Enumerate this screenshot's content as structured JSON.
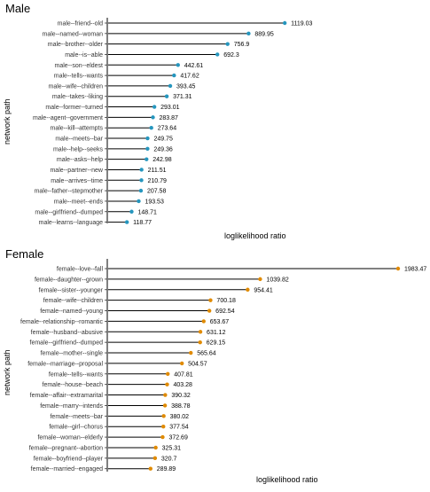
{
  "chart_data": [
    {
      "type": "lollipop",
      "title": "Male",
      "xlabel": "loglikelihood ratio",
      "ylabel": "network path",
      "color": "#2596be",
      "categories": [
        "male--friend--old",
        "male--named--woman",
        "male--brother--older",
        "male--is--able",
        "male--son--eldest",
        "male--tells--wants",
        "male--wife--children",
        "male--takes--liking",
        "male--former--turned",
        "male--agent--government",
        "male--kill--attempts",
        "male--meets--bar",
        "male--help--seeks",
        "male--asks--help",
        "male--partner--new",
        "male--arrives--time",
        "male--father--stepmother",
        "male--meet--ends",
        "male--girlfriend--dumped",
        "male--learns--language"
      ],
      "values": [
        1119.03,
        889.95,
        756.9,
        692.3,
        442.61,
        417.62,
        393.45,
        371.31,
        293.01,
        283.87,
        273.64,
        249.75,
        249.36,
        242.98,
        211.51,
        210.79,
        207.58,
        193.53,
        148.71,
        118.77
      ],
      "value_labels": [
        "1119.03",
        "889.95",
        "756.9",
        "692.3",
        "442.61",
        "417.62",
        "393.45",
        "371.31",
        "293.01",
        "283.87",
        "273.64",
        "249.75",
        "249.36",
        "242.98",
        "211.51",
        "210.79",
        "207.58",
        "193.53",
        "148.71",
        "118.77"
      ]
    },
    {
      "type": "lollipop",
      "title": "Female",
      "xlabel": "loglikelihood ratio",
      "ylabel": "network path",
      "color": "#e08a00",
      "categories": [
        "female--love--fall",
        "female--daughter--grown",
        "female--sister--younger",
        "female--wife--children",
        "female--named--young",
        "female--relationship--romantic",
        "female--husband--abusive",
        "female--girlfriend--dumped",
        "female--mother--single",
        "female--marriage--proposal",
        "female--tells--wants",
        "female--house--beach",
        "female--affair--extramarital",
        "female--marry--intends",
        "female--meets--bar",
        "female--girl--chorus",
        "female--woman--elderly",
        "female--pregnant--abortion",
        "female--boyfriend--player",
        "female--married--engaged"
      ],
      "values": [
        1983.47,
        1039.82,
        954.41,
        700.18,
        692.54,
        653.67,
        631.12,
        629.15,
        565.64,
        504.57,
        407.81,
        403.28,
        390.32,
        388.78,
        380.02,
        377.54,
        372.69,
        325.31,
        320.7,
        289.89
      ],
      "value_labels": [
        "1983.47",
        "1039.82",
        "954.41",
        "700.18",
        "692.54",
        "653.67",
        "631.12",
        "629.15",
        "565.64",
        "504.57",
        "407.81",
        "403.28",
        "390.32",
        "388.78",
        "380.02",
        "377.54",
        "372.69",
        "325.31",
        "320.7",
        "289.89"
      ]
    }
  ]
}
